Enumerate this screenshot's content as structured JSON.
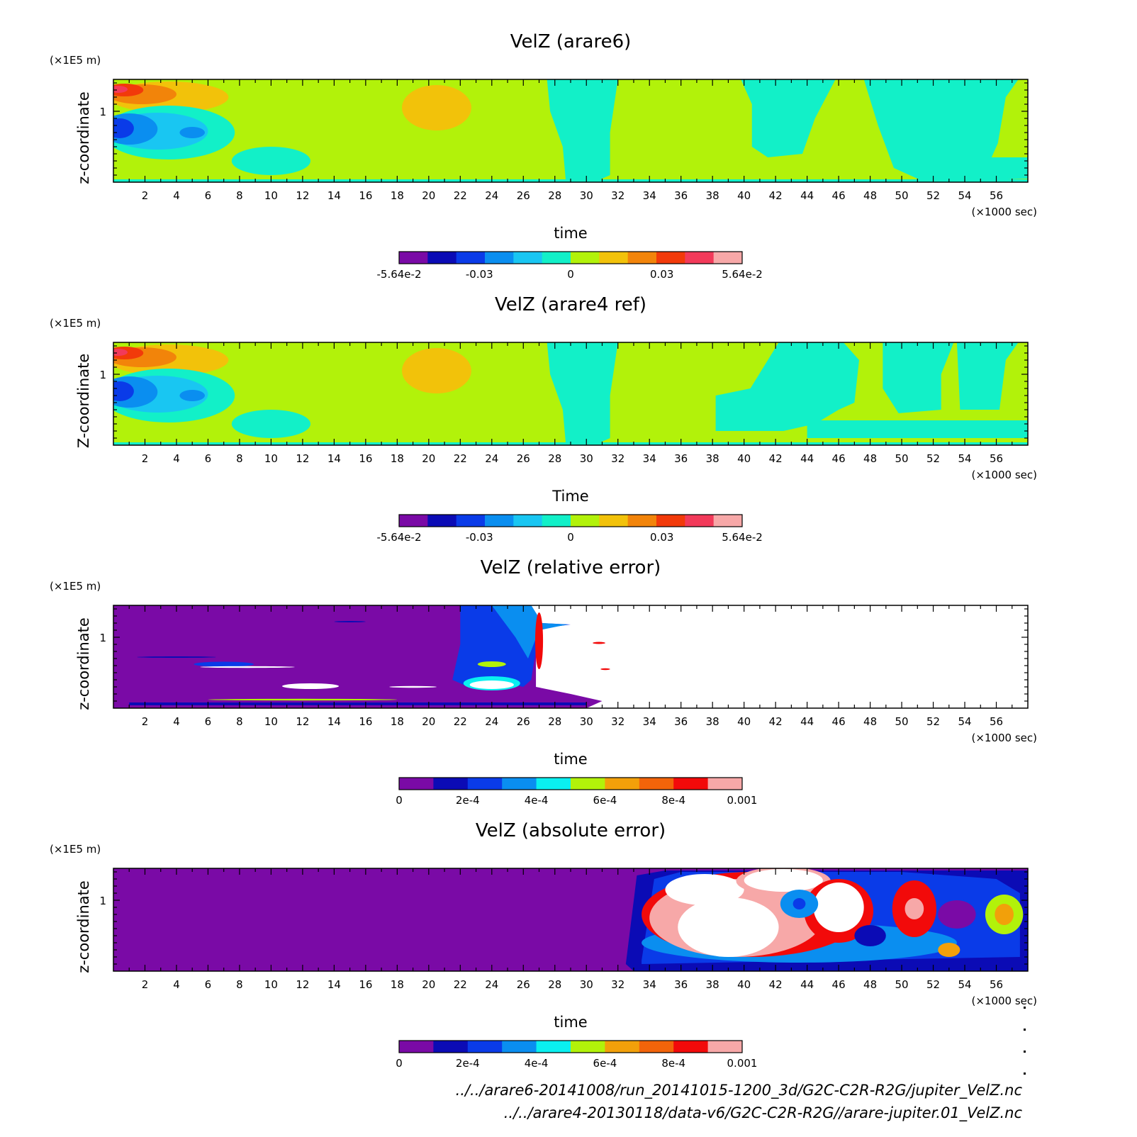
{
  "chart_data": [
    {
      "type": "heatmap",
      "title": "VelZ (arare6)",
      "xlabel": "time",
      "x_unit": "(×1000 sec)",
      "ylabel": "z-coordinate",
      "y_unit": "(×1E5 m)",
      "xlim": [
        0,
        58
      ],
      "ylim": [
        0,
        1.45
      ],
      "x_ticks": [
        2,
        4,
        6,
        8,
        10,
        12,
        14,
        16,
        18,
        20,
        22,
        24,
        26,
        28,
        30,
        32,
        34,
        36,
        38,
        40,
        42,
        44,
        46,
        48,
        50,
        52,
        54,
        56
      ],
      "y_ticks": [
        1
      ],
      "colorbar": {
        "min": -0.0564,
        "max": 0.0564,
        "levels": 11,
        "labels": [
          "-5.64e-2",
          "-0.03",
          "0",
          "0.03",
          "5.64e-2"
        ],
        "colors": [
          "#7a0aa6",
          "#0b0bb5",
          "#0a3be8",
          "#0a8ef0",
          "#19c6f2",
          "#12f0c8",
          "#b2f20a",
          "#f2c20a",
          "#f2840a",
          "#f23a0a",
          "#f23a5a",
          "#f7a8a8"
        ]
      },
      "regions": [
        {
          "value": "0.03",
          "t": [
            0,
            3
          ],
          "z": [
            1.08,
            1.42
          ]
        },
        {
          "value": "-0.03",
          "t": [
            0,
            2
          ],
          "z": [
            0.6,
            1.05
          ]
        },
        {
          "value": "0.01",
          "t": [
            18.5,
            22.5
          ],
          "z": [
            0.8,
            1.3
          ]
        },
        {
          "value": "-0.005",
          "t": [
            28,
            32
          ],
          "z": [
            0.1,
            1.42
          ]
        },
        {
          "value": "-0.005",
          "t": [
            40,
            46
          ],
          "z": [
            0.4,
            1.42
          ]
        },
        {
          "value": "-0.005",
          "t": [
            47,
            58
          ],
          "z": [
            0.1,
            1.42
          ]
        }
      ]
    },
    {
      "type": "heatmap",
      "title": "VelZ (arare4 ref)",
      "xlabel": "Time",
      "x_unit": "(×1000 sec)",
      "ylabel": "Z-coordinate",
      "y_unit": "(×1E5 m)",
      "xlim": [
        0,
        58
      ],
      "ylim": [
        0,
        1.45
      ],
      "x_ticks": [
        2,
        4,
        6,
        8,
        10,
        12,
        14,
        16,
        18,
        20,
        22,
        24,
        26,
        28,
        30,
        32,
        34,
        36,
        38,
        40,
        42,
        44,
        46,
        48,
        50,
        52,
        54,
        56
      ],
      "y_ticks": [
        1
      ],
      "colorbar": {
        "min": -0.0564,
        "max": 0.0564,
        "levels": 11,
        "labels": [
          "-5.64e-2",
          "-0.03",
          "0",
          "0.03",
          "5.64e-2"
        ],
        "colors": [
          "#7a0aa6",
          "#0b0bb5",
          "#0a3be8",
          "#0a8ef0",
          "#19c6f2",
          "#12f0c8",
          "#b2f20a",
          "#f2c20a",
          "#f2840a",
          "#f23a0a",
          "#f23a5a",
          "#f7a8a8"
        ]
      }
    },
    {
      "type": "heatmap",
      "title": "VelZ (relative error)",
      "xlabel": "time",
      "x_unit": "(×1000 sec)",
      "ylabel": "z-coordinate",
      "y_unit": "(×1E5 m)",
      "xlim": [
        0,
        58
      ],
      "ylim": [
        0,
        1.45
      ],
      "x_ticks": [
        2,
        4,
        6,
        8,
        10,
        12,
        14,
        16,
        18,
        20,
        22,
        24,
        26,
        28,
        30,
        32,
        34,
        36,
        38,
        40,
        42,
        44,
        46,
        48,
        50,
        52,
        54,
        56
      ],
      "y_ticks": [
        1
      ],
      "colorbar": {
        "min": 0,
        "max": 0.001,
        "levels": 10,
        "labels": [
          "0",
          "2e-4",
          "4e-4",
          "6e-4",
          "8e-4",
          "0.001"
        ],
        "colors": [
          "#7a0aa6",
          "#0b0bb5",
          "#0a3be8",
          "#0a8ef0",
          "#0af0f0",
          "#b2f20a",
          "#f2a00a",
          "#f2640a",
          "#f20a0a",
          "#f7a8a8"
        ]
      }
    },
    {
      "type": "heatmap",
      "title": "VelZ (absolute error)",
      "xlabel": "time",
      "x_unit": "(×1000 sec)",
      "ylabel": "z-coordinate",
      "y_unit": "(×1E5 m)",
      "xlim": [
        0,
        58
      ],
      "ylim": [
        0,
        1.45
      ],
      "x_ticks": [
        2,
        4,
        6,
        8,
        10,
        12,
        14,
        16,
        18,
        20,
        22,
        24,
        26,
        28,
        30,
        32,
        34,
        36,
        38,
        40,
        42,
        44,
        46,
        48,
        50,
        52,
        54,
        56
      ],
      "y_ticks": [
        1
      ],
      "colorbar": {
        "min": 0,
        "max": 0.001,
        "levels": 10,
        "labels": [
          "0",
          "2e-4",
          "4e-4",
          "6e-4",
          "8e-4",
          "0.001"
        ],
        "colors": [
          "#7a0aa6",
          "#0b0bb5",
          "#0a3be8",
          "#0a8ef0",
          "#0af0f0",
          "#b2f20a",
          "#f2a00a",
          "#f2640a",
          "#f20a0a",
          "#f7a8a8"
        ]
      }
    }
  ],
  "footer": {
    "line1": "../../arare6-20141008/run_20141015-1200_3d/G2C-C2R-R2G/jupiter_VelZ.nc",
    "line2": "../../arare4-20130118/data-v6/G2C-C2R-R2G//arare-jupiter.01_VelZ.nc"
  }
}
